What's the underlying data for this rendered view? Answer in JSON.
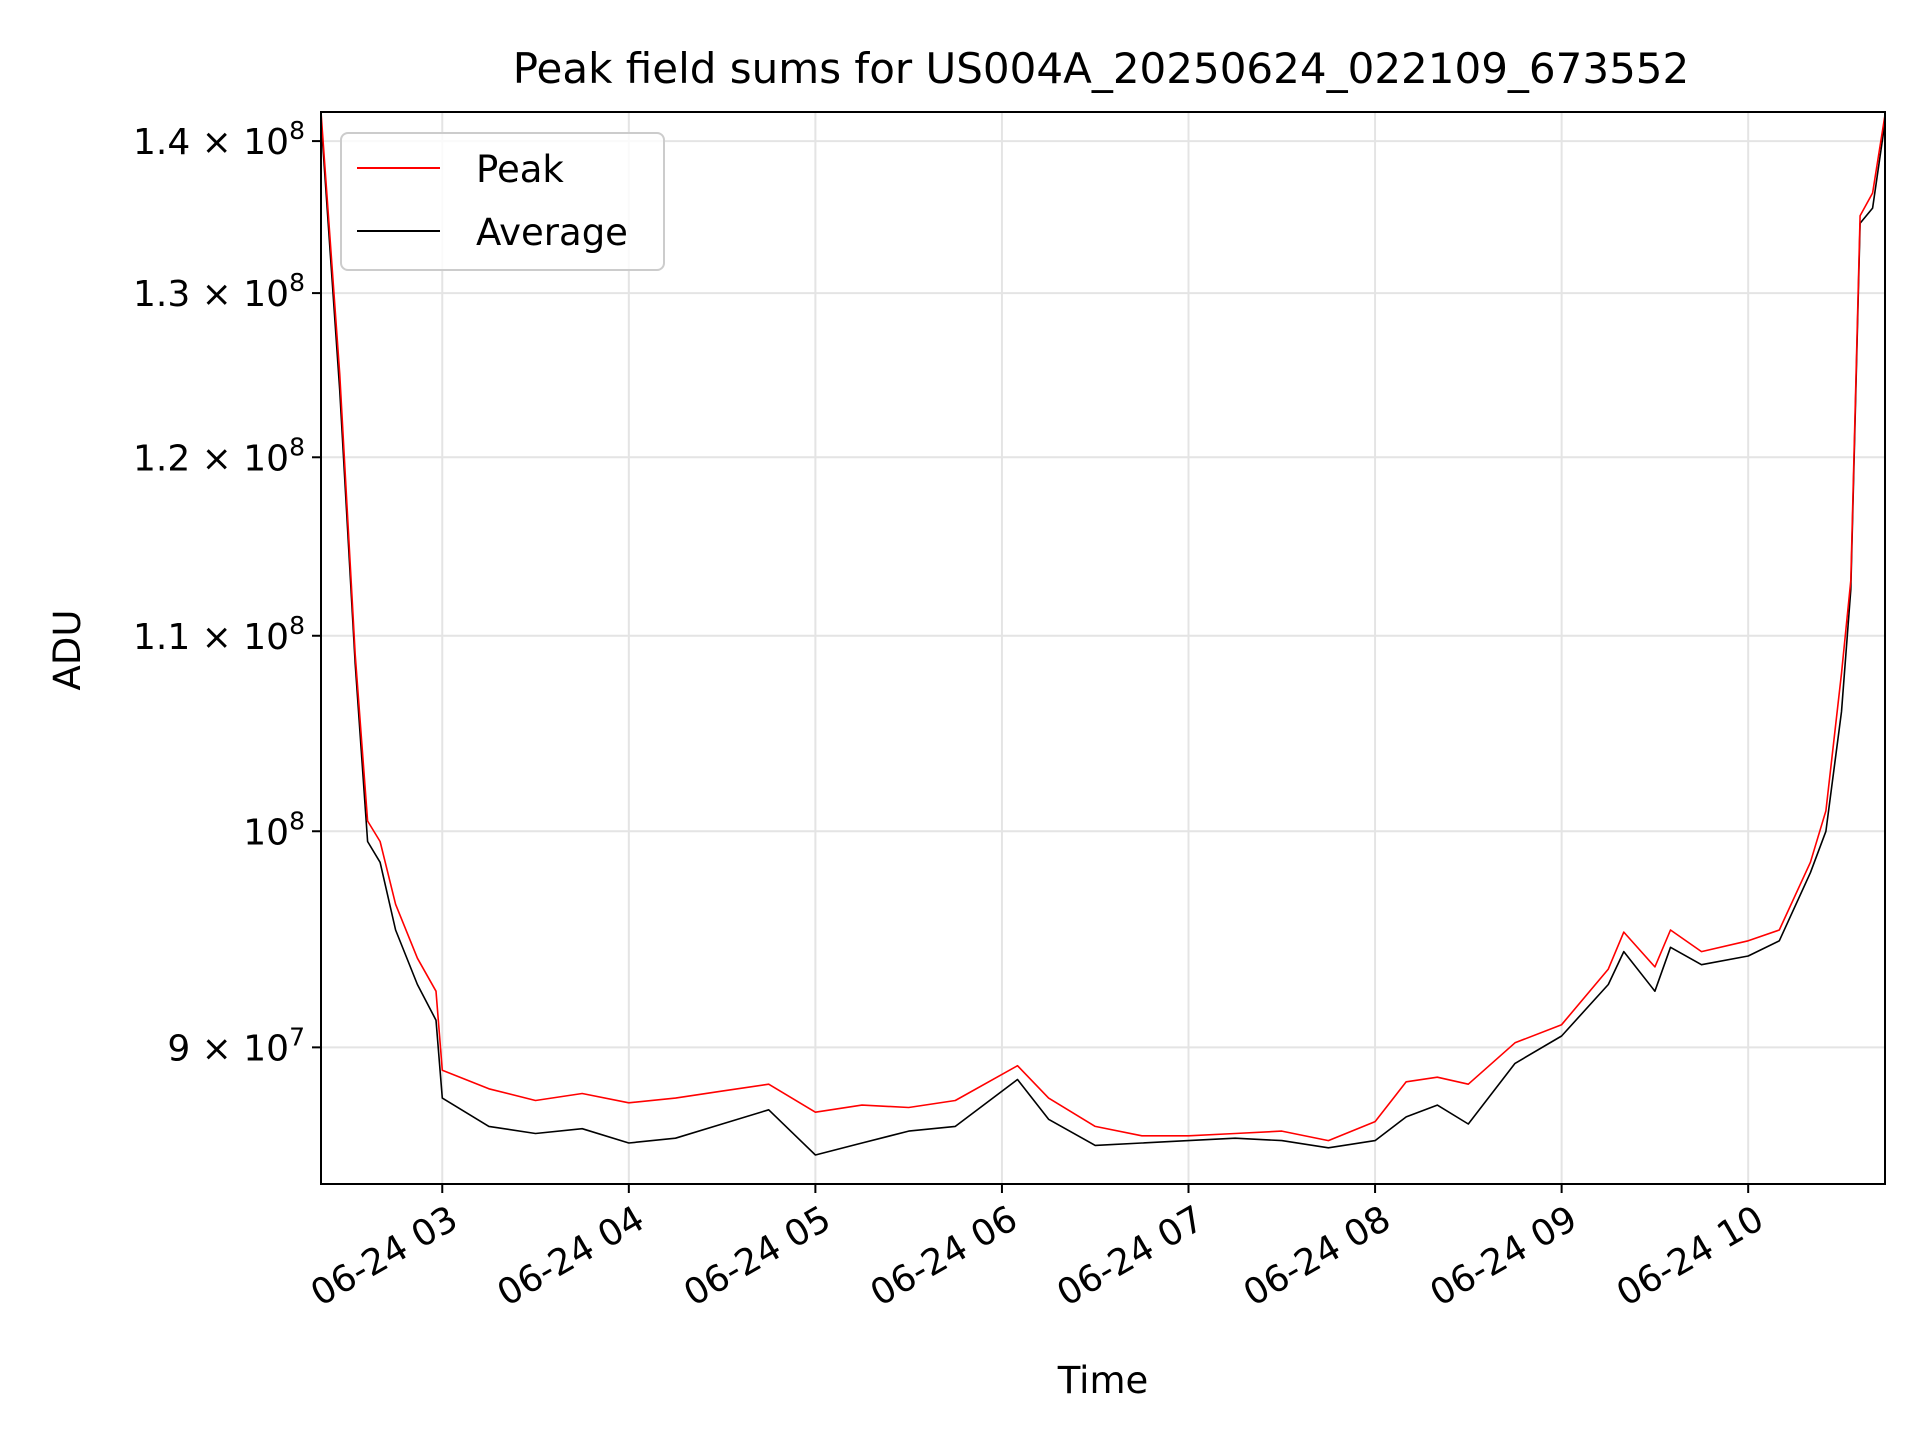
{
  "chart_data": {
    "type": "line",
    "title": "Peak field sums for US004A_20250624_022109_673552",
    "xlabel": "Time",
    "ylabel": "ADU",
    "yscale": "log",
    "grid": true,
    "legend_placement": "top-left",
    "xlim": [
      "06-24 02:21",
      "06-24 10:44"
    ],
    "ylim": [
      84200000,
      142000000
    ],
    "x_ticks": [
      "06-24 03",
      "06-24 04",
      "06-24 05",
      "06-24 06",
      "06-24 07",
      "06-24 08",
      "06-24 09",
      "06-24 10"
    ],
    "y_ticks": [
      {
        "value": 90000000,
        "mantissa": "9",
        "exponent": "7"
      },
      {
        "value": 100000000,
        "mantissa": "",
        "exponent": "8"
      },
      {
        "value": 110000000,
        "mantissa": "1.1",
        "exponent": "8"
      },
      {
        "value": 120000000,
        "mantissa": "1.2",
        "exponent": "8"
      },
      {
        "value": 130000000,
        "mantissa": "1.3",
        "exponent": "8"
      },
      {
        "value": 140000000,
        "mantissa": "1.4",
        "exponent": "8"
      }
    ],
    "series": [
      {
        "name": "Peak",
        "color": "#ff0000",
        "points": [
          [
            "06-24 02:21",
            142000000
          ],
          [
            "06-24 02:27",
            125000000
          ],
          [
            "06-24 02:32",
            109000000
          ],
          [
            "06-24 02:36",
            100500000
          ],
          [
            "06-24 02:40",
            99500000
          ],
          [
            "06-24 02:45",
            96500000
          ],
          [
            "06-24 02:52",
            94000000
          ],
          [
            "06-24 02:58",
            92500000
          ],
          [
            "06-24 03:00",
            89000000
          ],
          [
            "06-24 03:15",
            88200000
          ],
          [
            "06-24 03:30",
            87700000
          ],
          [
            "06-24 03:45",
            88000000
          ],
          [
            "06-24 04:00",
            87600000
          ],
          [
            "06-24 04:15",
            87800000
          ],
          [
            "06-24 04:30",
            88100000
          ],
          [
            "06-24 04:45",
            88400000
          ],
          [
            "06-24 05:00",
            87200000
          ],
          [
            "06-24 05:15",
            87500000
          ],
          [
            "06-24 05:30",
            87400000
          ],
          [
            "06-24 05:45",
            87700000
          ],
          [
            "06-24 06:05",
            89200000
          ],
          [
            "06-24 06:15",
            87800000
          ],
          [
            "06-24 06:30",
            86600000
          ],
          [
            "06-24 06:45",
            86200000
          ],
          [
            "06-24 07:00",
            86200000
          ],
          [
            "06-24 07:15",
            86300000
          ],
          [
            "06-24 07:30",
            86400000
          ],
          [
            "06-24 07:45",
            86000000
          ],
          [
            "06-24 08:00",
            86800000
          ],
          [
            "06-24 08:10",
            88500000
          ],
          [
            "06-24 08:20",
            88700000
          ],
          [
            "06-24 08:30",
            88400000
          ],
          [
            "06-24 08:45",
            90200000
          ],
          [
            "06-24 09:00",
            91000000
          ],
          [
            "06-24 09:15",
            93500000
          ],
          [
            "06-24 09:20",
            95200000
          ],
          [
            "06-24 09:30",
            93600000
          ],
          [
            "06-24 09:35",
            95300000
          ],
          [
            "06-24 09:45",
            94300000
          ],
          [
            "06-24 10:00",
            94800000
          ],
          [
            "06-24 10:10",
            95300000
          ],
          [
            "06-24 10:20",
            98500000
          ],
          [
            "06-24 10:25",
            101000000
          ],
          [
            "06-24 10:30",
            108000000
          ],
          [
            "06-24 10:33",
            113000000
          ],
          [
            "06-24 10:36",
            135000000
          ],
          [
            "06-24 10:40",
            136500000
          ],
          [
            "06-24 10:44",
            141800000
          ]
        ]
      },
      {
        "name": "Average",
        "color": "#000000",
        "points": [
          [
            "06-24 02:21",
            141500000
          ],
          [
            "06-24 02:27",
            124000000
          ],
          [
            "06-24 02:32",
            108500000
          ],
          [
            "06-24 02:36",
            99500000
          ],
          [
            "06-24 02:40",
            98500000
          ],
          [
            "06-24 02:45",
            95300000
          ],
          [
            "06-24 02:52",
            92800000
          ],
          [
            "06-24 02:58",
            91200000
          ],
          [
            "06-24 03:00",
            87800000
          ],
          [
            "06-24 03:15",
            86600000
          ],
          [
            "06-24 03:30",
            86300000
          ],
          [
            "06-24 03:45",
            86500000
          ],
          [
            "06-24 04:00",
            85900000
          ],
          [
            "06-24 04:15",
            86100000
          ],
          [
            "06-24 04:30",
            86700000
          ],
          [
            "06-24 04:45",
            87300000
          ],
          [
            "06-24 05:00",
            85400000
          ],
          [
            "06-24 05:15",
            85900000
          ],
          [
            "06-24 05:30",
            86400000
          ],
          [
            "06-24 05:45",
            86600000
          ],
          [
            "06-24 06:05",
            88600000
          ],
          [
            "06-24 06:15",
            86900000
          ],
          [
            "06-24 06:30",
            85800000
          ],
          [
            "06-24 06:45",
            85900000
          ],
          [
            "06-24 07:00",
            86000000
          ],
          [
            "06-24 07:15",
            86100000
          ],
          [
            "06-24 07:30",
            86000000
          ],
          [
            "06-24 07:45",
            85700000
          ],
          [
            "06-24 08:00",
            86000000
          ],
          [
            "06-24 08:10",
            87000000
          ],
          [
            "06-24 08:20",
            87500000
          ],
          [
            "06-24 08:30",
            86700000
          ],
          [
            "06-24 08:45",
            89300000
          ],
          [
            "06-24 09:00",
            90500000
          ],
          [
            "06-24 09:15",
            92800000
          ],
          [
            "06-24 09:20",
            94300000
          ],
          [
            "06-24 09:30",
            92500000
          ],
          [
            "06-24 09:35",
            94500000
          ],
          [
            "06-24 09:45",
            93700000
          ],
          [
            "06-24 10:00",
            94100000
          ],
          [
            "06-24 10:10",
            94800000
          ],
          [
            "06-24 10:20",
            98000000
          ],
          [
            "06-24 10:25",
            100000000
          ],
          [
            "06-24 10:30",
            106000000
          ],
          [
            "06-24 10:33",
            112500000
          ],
          [
            "06-24 10:36",
            134500000
          ],
          [
            "06-24 10:40",
            135500000
          ],
          [
            "06-24 10:44",
            141300000
          ]
        ]
      }
    ]
  }
}
